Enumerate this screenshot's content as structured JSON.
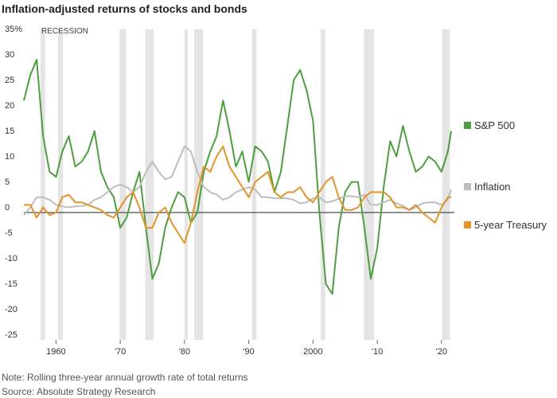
{
  "chart_data": {
    "type": "line",
    "title": "Inflation-adjusted returns of stocks and bonds",
    "recession_label": "RECESSION",
    "note": "Note: Rolling three-year annual growth rate of total returns",
    "source": "Source: Absolute Strategy Research",
    "recessions": [
      [
        1957.6,
        1958.3
      ],
      [
        1960.3,
        1961.1
      ],
      [
        1969.9,
        1970.9
      ],
      [
        1973.9,
        1975.2
      ],
      [
        1980.0,
        1980.5
      ],
      [
        1981.5,
        1982.9
      ],
      [
        1990.5,
        1991.2
      ],
      [
        2001.2,
        2001.9
      ],
      [
        2007.9,
        2009.5
      ],
      [
        2020.1,
        2021.3
      ]
    ],
    "recession_color": "#e4e4e4",
    "x": [
      1955,
      1956,
      1957,
      1958,
      1959,
      1960,
      1961,
      1962,
      1963,
      1964,
      1965,
      1966,
      1967,
      1968,
      1969,
      1970,
      1971,
      1972,
      1973,
      1974,
      1975,
      1976,
      1977,
      1978,
      1979,
      1980,
      1981,
      1982,
      1983,
      1984,
      1985,
      1986,
      1987,
      1988,
      1989,
      1990,
      1991,
      1992,
      1993,
      1994,
      1995,
      1996,
      1997,
      1998,
      1999,
      2000,
      2001,
      2002,
      2003,
      2004,
      2005,
      2006,
      2007,
      2008,
      2009,
      2010,
      2011,
      2012,
      2013,
      2014,
      2015,
      2016,
      2017,
      2018,
      2019,
      2020,
      2021,
      2021.5
    ],
    "series": [
      {
        "name": "S&P 500",
        "color": "#4c9e3e",
        "values": [
          22,
          27,
          30,
          15,
          8,
          7,
          12,
          15,
          9,
          10,
          12,
          16,
          8,
          5,
          3,
          -3,
          -1,
          4,
          8,
          -3,
          -13,
          -10,
          -3,
          1,
          4,
          3,
          -2,
          0,
          8,
          12,
          15,
          22,
          16,
          9,
          12,
          6,
          13,
          12,
          10,
          4,
          8,
          17,
          26,
          28,
          24,
          18,
          0,
          -14,
          -16,
          -3,
          4,
          6,
          6,
          -3,
          -13,
          -7,
          5,
          14,
          11,
          17,
          12,
          8,
          9,
          11,
          10,
          8,
          12,
          16
        ]
      },
      {
        "name": "Inflation",
        "color": "#bdbdbd",
        "values": [
          -0.5,
          1,
          3,
          3,
          2.5,
          1.5,
          1.2,
          1,
          1.2,
          1.3,
          1.5,
          2.5,
          3,
          4,
          5,
          5.5,
          5,
          4,
          5,
          8,
          10,
          8,
          6.5,
          7,
          10,
          13,
          12,
          8,
          5,
          4,
          3.5,
          2.5,
          3,
          4,
          4.5,
          5,
          4.5,
          3,
          3,
          2.8,
          2.8,
          2.8,
          2.5,
          1.8,
          2,
          2.8,
          3,
          2,
          2.2,
          2.7,
          3.2,
          3.2,
          3,
          3.5,
          1.5,
          1.5,
          2,
          2.5,
          1.8,
          1.3,
          0.5,
          1,
          1.8,
          2,
          2,
          1.5,
          2.5,
          4.5
        ]
      },
      {
        "name": "5-year Treasury",
        "color": "#e3932a",
        "values": [
          1.5,
          1.5,
          -1,
          1,
          -0.5,
          0,
          3,
          3.5,
          2,
          2,
          1.5,
          1,
          0.5,
          -0.5,
          -1,
          1,
          3,
          4,
          1,
          -3,
          -3,
          0,
          1,
          -2,
          -4,
          -6,
          -2,
          4,
          9,
          8,
          11,
          13,
          9,
          7,
          5,
          3,
          6,
          7,
          8,
          4,
          3,
          4,
          4,
          5,
          3,
          2,
          4,
          6,
          7,
          3,
          0.5,
          0.5,
          1,
          3,
          4,
          4,
          4,
          3,
          1,
          1,
          0.5,
          1.5,
          0,
          -1,
          -2,
          1,
          3,
          3
        ]
      }
    ],
    "xlim": [
      1955,
      2022
    ],
    "xticks": [
      1960,
      {
        "value": 1970,
        "label": "'70"
      },
      {
        "value": 1980,
        "label": "'80"
      },
      {
        "value": 1990,
        "label": "'90"
      },
      2000,
      {
        "value": 2010,
        "label": "'10"
      },
      {
        "value": 2020,
        "label": "'20"
      }
    ],
    "ylim": [
      -25,
      36
    ],
    "yticks": [
      {
        "value": 35,
        "label": "35%"
      },
      30,
      25,
      20,
      15,
      10,
      5,
      0,
      -5,
      -10,
      -15,
      -20,
      -25
    ]
  }
}
